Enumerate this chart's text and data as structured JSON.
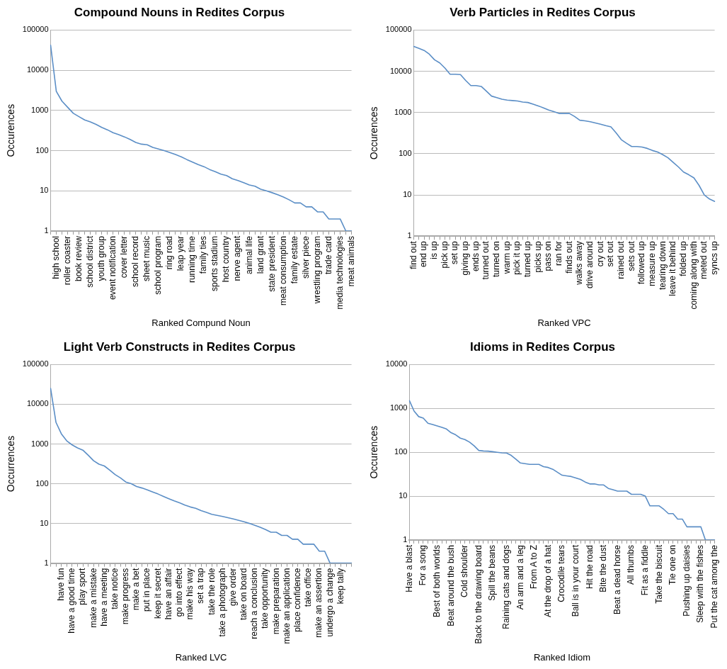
{
  "chart_data": [
    {
      "type": "line",
      "title": "Compound Nouns in Redites Corpus",
      "xlabel": "Ranked Compund Noun",
      "ylabel": "Occurences",
      "color": "#5b8ec6",
      "marker": "none",
      "log": "y",
      "grid": "y",
      "ylim": [
        1,
        100000
      ],
      "yticks": [
        1,
        10,
        100,
        1000,
        10000,
        100000
      ],
      "categories": [
        null,
        "high school",
        null,
        "roller coaster",
        null,
        "book review",
        null,
        "school district",
        null,
        "youth group",
        null,
        "event notification",
        null,
        "cover letter",
        null,
        "school record",
        null,
        "sheet music",
        null,
        "school program",
        null,
        "ring road",
        null,
        "leap year",
        null,
        "running time",
        null,
        "family ties",
        null,
        "sports stadium",
        null,
        "host country",
        null,
        "nerve agent",
        null,
        "animal life",
        null,
        "land grant",
        null,
        "state president",
        null,
        "meat consumption",
        null,
        "family estate",
        null,
        "silver piece",
        null,
        "wrestling program",
        null,
        "trade card",
        null,
        "media technologies",
        null,
        "meat animals"
      ],
      "values": [
        42000,
        3000,
        1700,
        1200,
        850,
        700,
        580,
        520,
        450,
        380,
        330,
        280,
        250,
        220,
        190,
        160,
        145,
        140,
        120,
        110,
        100,
        90,
        80,
        70,
        60,
        52,
        45,
        40,
        34,
        30,
        26,
        24,
        20,
        18,
        16,
        14,
        13,
        11,
        10,
        9,
        8,
        7,
        6,
        5,
        5,
        4,
        4,
        3,
        3,
        2,
        2,
        2,
        1,
        1
      ]
    },
    {
      "type": "line",
      "title": "Verb Particles in Redites Corpus",
      "xlabel": "Ranked VPC",
      "ylabel": "Occurences",
      "color": "#5b8ec6",
      "marker": "none",
      "log": "y",
      "grid": "y",
      "ylim": [
        1,
        100000
      ],
      "yticks": [
        1,
        10,
        100,
        1000,
        10000,
        100000
      ],
      "categories": [
        "find out",
        null,
        "end up",
        null,
        "is up",
        null,
        "pick up",
        null,
        "set up",
        null,
        "giving up",
        null,
        "ends up",
        null,
        "turned out",
        null,
        "turned on",
        null,
        "warm up",
        null,
        "pick it up",
        null,
        "turned up",
        null,
        "picks up",
        null,
        "pass on",
        null,
        "ran for",
        null,
        "finds out",
        null,
        "walks away",
        null,
        "drive around",
        null,
        "cry out",
        null,
        "set out",
        null,
        "rained out",
        null,
        "sets out",
        null,
        "followed up",
        null,
        "measure up",
        null,
        "tearing down",
        null,
        "leave it behind",
        null,
        "folded up",
        null,
        "coming along with",
        null,
        "meted out",
        null,
        "syncs up"
      ],
      "values": [
        40000,
        36000,
        32000,
        26000,
        19000,
        16000,
        12000,
        8500,
        8500,
        8300,
        6000,
        4500,
        4500,
        4300,
        3300,
        2500,
        2300,
        2100,
        2000,
        1950,
        1900,
        1800,
        1750,
        1600,
        1450,
        1300,
        1150,
        1050,
        950,
        950,
        950,
        800,
        650,
        630,
        600,
        560,
        520,
        480,
        450,
        320,
        220,
        180,
        150,
        150,
        145,
        135,
        120,
        110,
        95,
        80,
        62,
        48,
        36,
        31,
        26,
        17,
        10,
        8,
        7
      ]
    },
    {
      "type": "line",
      "title": "Light Verb Constructs in Redites Corpus",
      "xlabel": "Ranked LVC",
      "ylabel": "Occurrences",
      "color": "#5b8ec6",
      "marker": "none",
      "log": "y",
      "grid": "y",
      "ylim": [
        1,
        100000
      ],
      "yticks": [
        1,
        10,
        100,
        1000,
        10000,
        100000
      ],
      "categories": [
        null,
        null,
        "have fun",
        null,
        "have a good time",
        null,
        "play sport",
        null,
        "make a mistake",
        null,
        "have a meeting",
        null,
        "take notice",
        null,
        "make progress",
        null,
        "make a bet",
        null,
        "put in place",
        null,
        "keep it secret",
        null,
        "have an affair",
        null,
        "go into effect",
        null,
        "make his way",
        null,
        "set a trap",
        null,
        "take the role",
        null,
        "take a photograph",
        null,
        "give order",
        null,
        "take on board",
        null,
        "reach a conclusion",
        null,
        "take opportunity",
        null,
        "make preparation",
        null,
        "make an application",
        null,
        "place confidence",
        null,
        "take office",
        null,
        "make an assertion",
        null,
        "undergo a change",
        null,
        "keep tally",
        null,
        null
      ],
      "values": [
        25000,
        3500,
        1800,
        1200,
        950,
        800,
        700,
        520,
        380,
        310,
        280,
        220,
        170,
        140,
        110,
        100,
        85,
        78,
        70,
        62,
        55,
        48,
        42,
        37,
        33,
        29,
        26,
        24,
        21,
        19,
        17,
        16,
        15,
        14,
        13,
        12,
        11,
        10,
        9,
        8,
        7,
        6,
        6,
        5,
        5,
        4,
        4,
        3,
        3,
        3,
        2,
        2,
        1,
        1,
        1,
        1,
        1
      ]
    },
    {
      "type": "line",
      "title": "Idioms in Redites Corpus",
      "xlabel": "Ranked Idiom",
      "ylabel": "Occurences",
      "color": "#5b8ec6",
      "marker": "none",
      "log": "y",
      "grid": "y",
      "ylim": [
        1,
        10000
      ],
      "yticks": [
        1,
        10,
        100,
        1000,
        10000
      ],
      "categories": [
        "Have a blast",
        null,
        null,
        "For a song",
        null,
        null,
        "Best of both worlds",
        null,
        null,
        "Beat around the bush",
        null,
        null,
        "Cold shoulder",
        null,
        null,
        "Back to the drawing board",
        null,
        null,
        "Spill the beans",
        null,
        null,
        "Raining cats and dogs",
        null,
        null,
        "An arm and a leg",
        null,
        null,
        "From A to Z",
        null,
        null,
        "At the drop of a hat",
        null,
        null,
        "Crocodile tears",
        null,
        null,
        "Ball is in your court",
        null,
        null,
        "Hit the road",
        null,
        null,
        "Bite the dust",
        null,
        null,
        "Beat a dead horse",
        null,
        null,
        "All thumbs",
        null,
        null,
        "Fit as a fiddle",
        null,
        null,
        "Take the biscuit",
        null,
        null,
        "Tie one on",
        null,
        null,
        "Pushing up daisies",
        null,
        null,
        "Sleep with the fishes",
        null,
        null,
        "Put the cat among the"
      ],
      "values": [
        1500,
        870,
        650,
        600,
        460,
        430,
        400,
        370,
        340,
        280,
        250,
        210,
        195,
        170,
        140,
        110,
        107,
        106,
        103,
        100,
        97,
        96,
        85,
        70,
        57,
        55,
        53,
        53,
        53,
        47,
        45,
        41,
        35,
        30,
        29,
        28,
        26,
        24,
        21,
        19,
        19,
        18,
        18,
        15,
        14,
        13,
        13,
        13,
        11,
        11,
        11,
        10,
        6,
        6,
        6,
        5,
        4,
        4,
        3,
        3,
        2,
        2,
        2,
        2,
        1,
        1,
        1
      ]
    }
  ]
}
